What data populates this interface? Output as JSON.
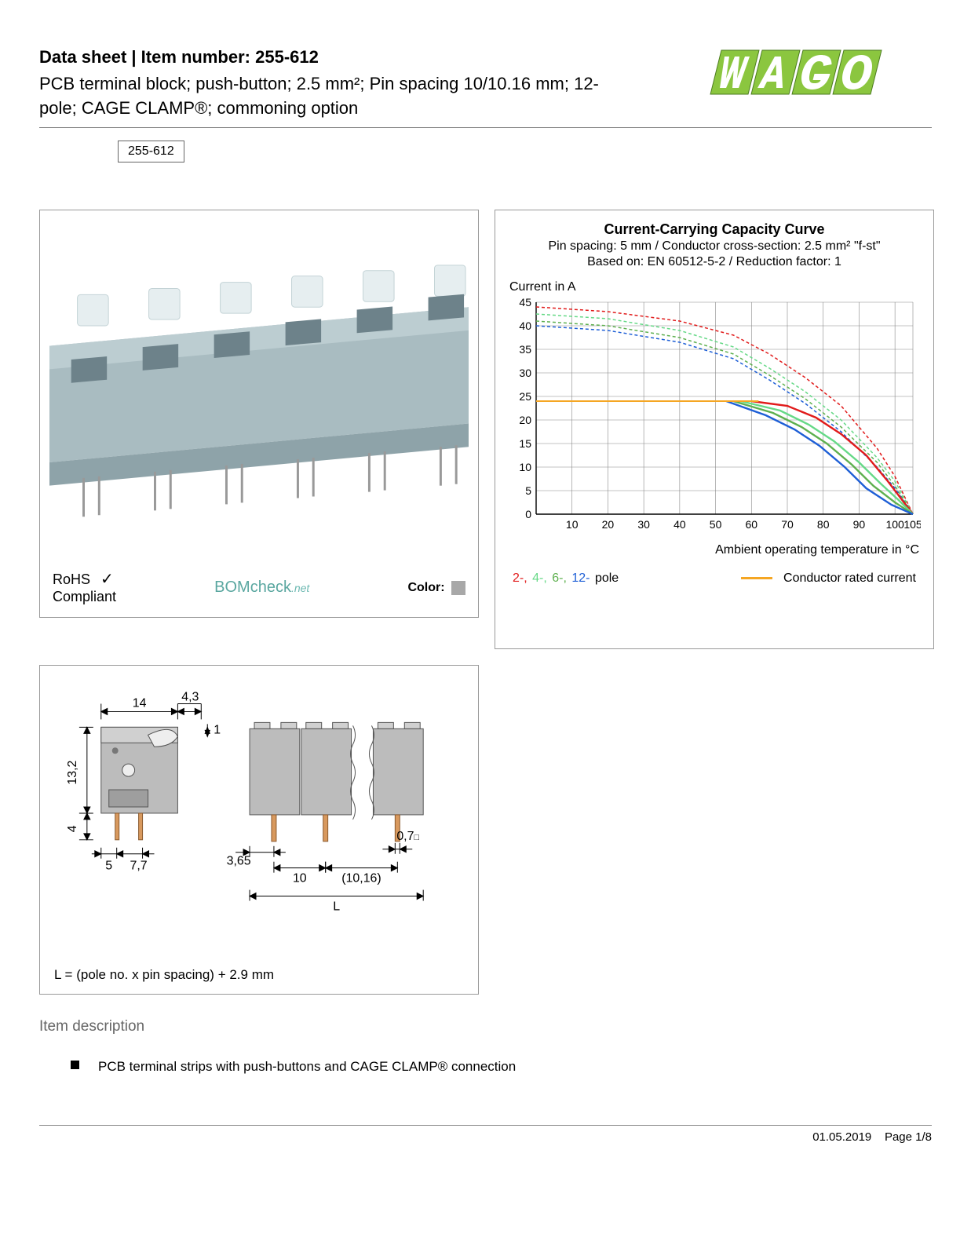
{
  "header": {
    "title_prefix": "Data sheet  |  Item number: ",
    "item_number": "255-612",
    "subtitle": "PCB terminal block; push-button; 2.5 mm²; Pin spacing 10/10.16 mm; 12-pole; CAGE CLAMP®; commoning option",
    "pill": "255-612"
  },
  "logo": {
    "text": "WAGO",
    "fill": "#8bc63f",
    "outline": "#4a7a1e"
  },
  "product_panel": {
    "block_color": "#a9bcc1",
    "pin_color": "#bfbfbf",
    "button_color": "#e6eef0",
    "rohs_line1": "RoHS",
    "rohs_line2": "Compliant",
    "bomcheck_main": "BOMcheck",
    "bomcheck_suffix": ".net",
    "color_label": "Color:",
    "color_swatch": "#a8a8a8"
  },
  "chart": {
    "title": "Current-Carrying Capacity Curve",
    "sub1": "Pin spacing: 5 mm / Conductor cross-section: 2.5 mm² \"f-st\"",
    "sub2": "Based on: EN 60512-5-2 / Reduction factor: 1",
    "ylabel": "Current in A",
    "xlabel": "Ambient operating temperature in °C",
    "xlim": [
      0,
      105
    ],
    "ylim": [
      0,
      45
    ],
    "xticks": [
      10,
      20,
      30,
      40,
      50,
      60,
      70,
      80,
      90,
      100,
      105
    ],
    "yticks": [
      0,
      5,
      10,
      15,
      20,
      25,
      30,
      35,
      40,
      45
    ],
    "grid_color": "#888888",
    "background": "#ffffff",
    "series": {
      "pole2": {
        "color": "#e11b1b",
        "dash": "4,3",
        "width": 1.5,
        "points": [
          [
            0,
            44
          ],
          [
            20,
            43
          ],
          [
            40,
            41
          ],
          [
            55,
            38
          ],
          [
            65,
            34
          ],
          [
            75,
            29
          ],
          [
            85,
            23
          ],
          [
            95,
            14
          ],
          [
            100,
            8
          ],
          [
            105,
            0
          ]
        ]
      },
      "pole4": {
        "color": "#66d987",
        "dash": "4,3",
        "width": 1.5,
        "points": [
          [
            0,
            42.5
          ],
          [
            20,
            41.5
          ],
          [
            40,
            39
          ],
          [
            55,
            35.5
          ],
          [
            65,
            31
          ],
          [
            75,
            26
          ],
          [
            85,
            20
          ],
          [
            95,
            12
          ],
          [
            100,
            7
          ],
          [
            105,
            0
          ]
        ]
      },
      "pole6": {
        "color": "#5eb04f",
        "dash": "4,3",
        "width": 1.5,
        "points": [
          [
            0,
            41
          ],
          [
            20,
            40
          ],
          [
            40,
            37.5
          ],
          [
            55,
            34
          ],
          [
            65,
            29.5
          ],
          [
            75,
            24.5
          ],
          [
            85,
            18.5
          ],
          [
            95,
            11
          ],
          [
            100,
            6
          ],
          [
            105,
            0
          ]
        ]
      },
      "pole12": {
        "color": "#1e5fd6",
        "dash": "4,3",
        "width": 1.5,
        "points": [
          [
            0,
            40
          ],
          [
            20,
            39
          ],
          [
            40,
            36.5
          ],
          [
            55,
            33
          ],
          [
            65,
            28.5
          ],
          [
            75,
            23.5
          ],
          [
            85,
            17.5
          ],
          [
            95,
            10
          ],
          [
            100,
            5.5
          ],
          [
            105,
            0
          ]
        ]
      },
      "solid2": {
        "color": "#e11b1b",
        "dash": "",
        "width": 2.4,
        "points": [
          [
            60,
            24
          ],
          [
            70,
            23
          ],
          [
            78,
            20.5
          ],
          [
            85,
            17
          ],
          [
            92,
            12.5
          ],
          [
            98,
            7
          ],
          [
            102,
            3
          ],
          [
            105,
            0
          ]
        ]
      },
      "solid4": {
        "color": "#66d987",
        "dash": "",
        "width": 2.4,
        "points": [
          [
            57,
            24
          ],
          [
            68,
            22
          ],
          [
            76,
            19
          ],
          [
            83,
            15.5
          ],
          [
            90,
            11
          ],
          [
            96,
            6.5
          ],
          [
            101,
            3
          ],
          [
            105,
            0
          ]
        ]
      },
      "solid6": {
        "color": "#5eb04f",
        "dash": "",
        "width": 2.4,
        "points": [
          [
            55,
            24
          ],
          [
            66,
            21.5
          ],
          [
            74,
            18.5
          ],
          [
            81,
            15
          ],
          [
            88,
            10.5
          ],
          [
            94,
            6
          ],
          [
            100,
            2.5
          ],
          [
            105,
            0
          ]
        ]
      },
      "solid12": {
        "color": "#1e5fd6",
        "dash": "",
        "width": 2.4,
        "points": [
          [
            53,
            24
          ],
          [
            64,
            21
          ],
          [
            72,
            18
          ],
          [
            79,
            14.5
          ],
          [
            86,
            10
          ],
          [
            92,
            5.5
          ],
          [
            99,
            2
          ],
          [
            105,
            0
          ]
        ]
      },
      "rated": {
        "color": "#f5a623",
        "dash": "",
        "width": 2.0,
        "points": [
          [
            0,
            24
          ],
          [
            62,
            24
          ]
        ]
      }
    },
    "legend": {
      "poles_prefix_colors": [
        {
          "label": "2-",
          "color": "#e11b1b"
        },
        {
          "label": "4-",
          "color": "#66d987"
        },
        {
          "label": "6-",
          "color": "#5eb04f"
        },
        {
          "label": "12-",
          "color": "#1e5fd6"
        }
      ],
      "poles_suffix": " pole",
      "rated_label": "Conductor rated current"
    }
  },
  "dims": {
    "body_fill": "#bcbcbc",
    "body_stroke": "#555",
    "pin_fill": "#d8995e",
    "labels": {
      "w14": "14",
      "w43": "4,3",
      "h132": "13,2",
      "h4": "4",
      "p5": "5",
      "p77": "7,7",
      "p365": "3,65",
      "p10": "10",
      "p1016": "(10,16)",
      "p07": "0,7",
      "sq": "□",
      "L": "L",
      "one": "1"
    },
    "formula": "L = (pole no. x pin spacing) + 2.9 mm"
  },
  "description": {
    "heading": "Item description",
    "bullet1": "PCB terminal strips with push-buttons and CAGE CLAMP® connection"
  },
  "footer": {
    "date": "01.05.2019",
    "page": "Page 1/8"
  }
}
